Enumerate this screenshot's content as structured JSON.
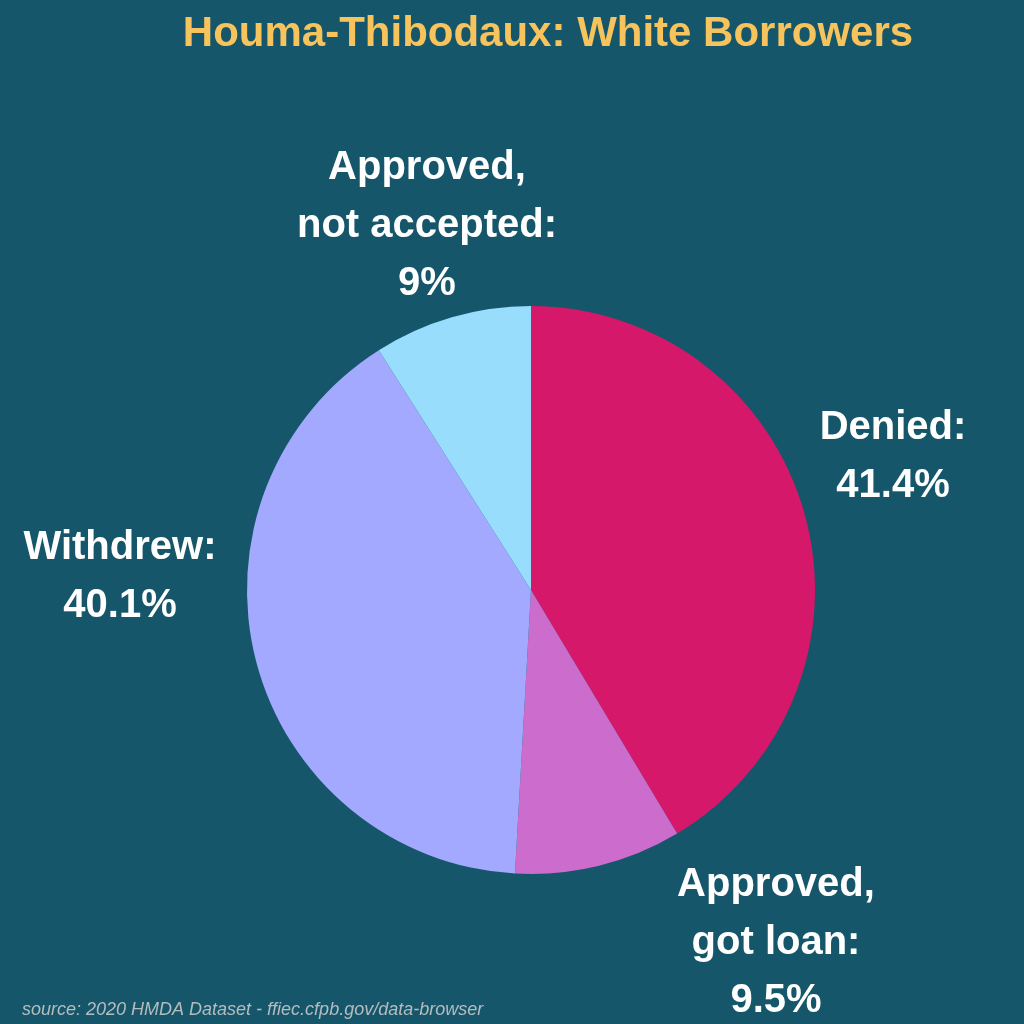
{
  "chart_data": {
    "type": "pie",
    "title": "Houma-Thibodaux: White Borrowers",
    "categories": [
      "Denied:",
      "Approved, got loan:",
      "Withdrew:",
      "Approved, not accepted:"
    ],
    "values": [
      41.4,
      9.5,
      40.1,
      9
    ],
    "value_labels": [
      "41.4%",
      "9.5%",
      "40.1%",
      "9%"
    ],
    "colors": [
      "#d6186a",
      "#cc6ccc",
      "#a3a9fe",
      "#99ddfd"
    ],
    "data_labels": true,
    "source": "source: 2020 HMDA Dataset - ffiec.cfpb.gov/data-browser"
  }
}
